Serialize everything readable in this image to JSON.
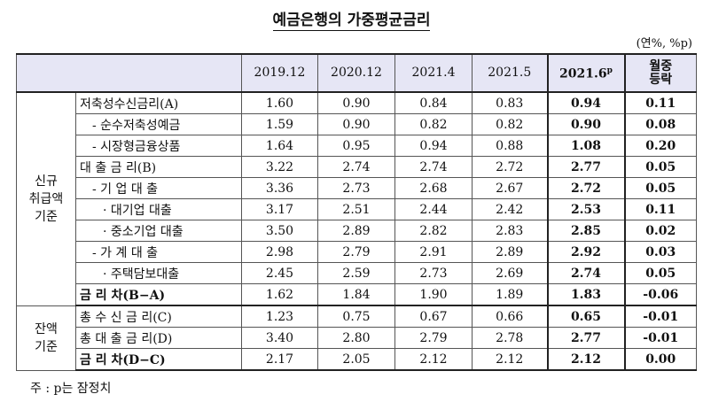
{
  "title": "예금은행의 가중평균금리",
  "unit": "(연%, %p)",
  "table": {
    "header": {
      "periods": [
        "2019.12",
        "2020.12",
        "2021.4",
        "2021.5"
      ],
      "latest": {
        "text": "2021.6",
        "sup": "p"
      },
      "change": [
        "월중",
        "등락"
      ]
    },
    "groups": [
      {
        "label": [
          "신규",
          "취급액",
          "기준"
        ],
        "rows": [
          {
            "label": "저축성수신금리(A)",
            "values": [
              "1.60",
              "0.90",
              "0.84",
              "0.83",
              "0.94",
              "0.11"
            ]
          },
          {
            "label": "- 순수저축성예금",
            "values": [
              "1.59",
              "0.90",
              "0.82",
              "0.82",
              "0.90",
              "0.08"
            ]
          },
          {
            "label": "- 시장형금융상품",
            "values": [
              "1.64",
              "0.95",
              "0.94",
              "0.88",
              "1.08",
              "0.20"
            ]
          },
          {
            "label": "대 출 금 리(B)",
            "values": [
              "3.22",
              "2.74",
              "2.74",
              "2.72",
              "2.77",
              "0.05"
            ]
          },
          {
            "label": "- 기 업 대 출",
            "values": [
              "3.36",
              "2.73",
              "2.68",
              "2.67",
              "2.72",
              "0.05"
            ]
          },
          {
            "label": "· 대기업 대출",
            "values": [
              "3.17",
              "2.51",
              "2.44",
              "2.42",
              "2.53",
              "0.11"
            ]
          },
          {
            "label": "· 중소기업 대출",
            "values": [
              "3.50",
              "2.89",
              "2.82",
              "2.83",
              "2.85",
              "0.02"
            ]
          },
          {
            "label": "- 가 계 대 출",
            "values": [
              "2.98",
              "2.79",
              "2.91",
              "2.89",
              "2.92",
              "0.03"
            ]
          },
          {
            "label": "· 주택담보대출",
            "values": [
              "2.45",
              "2.59",
              "2.73",
              "2.69",
              "2.74",
              "0.05"
            ]
          },
          {
            "label": "금 리 차(B−A)",
            "values": [
              "1.62",
              "1.84",
              "1.90",
              "1.89",
              "1.83",
              "-0.06"
            ]
          }
        ]
      },
      {
        "label": [
          "잔액",
          "기준"
        ],
        "rows": [
          {
            "label": "총 수 신 금 리(C)",
            "values": [
              "1.23",
              "0.75",
              "0.67",
              "0.66",
              "0.65",
              "-0.01"
            ]
          },
          {
            "label": "총 대 출 금 리(D)",
            "values": [
              "3.40",
              "2.80",
              "2.79",
              "2.78",
              "2.77",
              "-0.01"
            ]
          },
          {
            "label": "금 리 차(D−C)",
            "values": [
              "2.17",
              "2.05",
              "2.12",
              "2.12",
              "2.12",
              "0.00"
            ]
          }
        ]
      }
    ]
  },
  "footnote": "주 : p는 잠정치"
}
